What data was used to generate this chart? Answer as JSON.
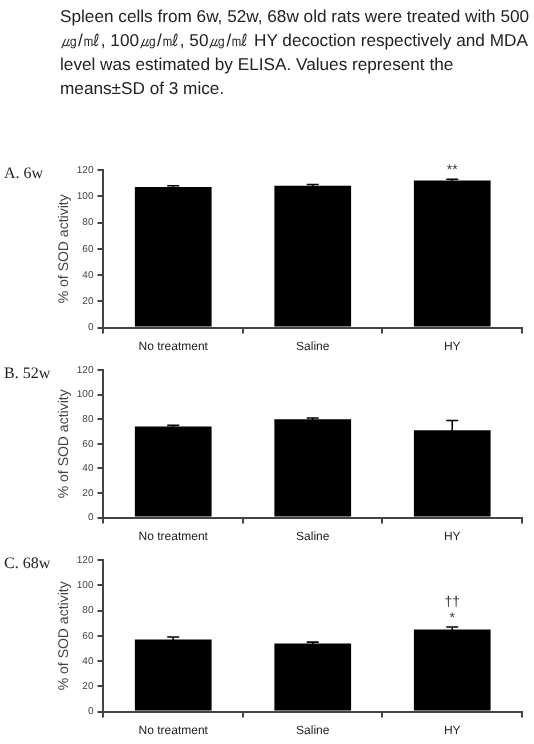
{
  "chart_data": [
    {
      "type": "bar",
      "title": "A. 6w",
      "ylabel": "% of SOD activity",
      "categories": [
        "No treatment",
        "Saline",
        "HY"
      ],
      "values": [
        107,
        108,
        112
      ],
      "errors": [
        1,
        1,
        1
      ],
      "color": "#000000",
      "ylim": [
        0,
        120
      ],
      "yticks": [
        0,
        20,
        40,
        60,
        80,
        100,
        120
      ],
      "grid": false,
      "legend": false,
      "annotations": [
        "Spleen cells from 6w, 52w, 68w old rats were treated with 500㎍/㎖, 100㎍/㎖, 50㎍/㎖ HY decoction respectively and MDA level was estimated by ELISA. Values represent the means±SD of 3 mice.",
        {
          "text": "**",
          "x": "HY",
          "y": 113
        }
      ]
    },
    {
      "type": "bar",
      "title": "B. 52w",
      "ylabel": "% of SOD activity",
      "categories": [
        "No treatment",
        "Saline",
        "HY"
      ],
      "values": [
        74,
        80,
        71
      ],
      "errors": [
        1,
        1,
        8
      ],
      "color": "#000000",
      "ylim": [
        0,
        120
      ],
      "yticks": [
        0,
        20,
        40,
        60,
        80,
        100,
        120
      ],
      "grid": false,
      "legend": false
    },
    {
      "type": "bar",
      "title": "C. 68w",
      "ylabel": "% of SOD activity",
      "categories": [
        "No treatment",
        "Saline",
        "HY"
      ],
      "values": [
        57,
        54,
        65
      ],
      "errors": [
        2,
        1,
        2
      ],
      "color": "#000000",
      "ylim": [
        0,
        120
      ],
      "yticks": [
        0,
        20,
        40,
        60,
        80,
        100,
        120
      ],
      "grid": false,
      "legend": false,
      "annotations": [
        {
          "text": "*",
          "x": "HY",
          "y": 67
        },
        {
          "text": "††",
          "x": "HY",
          "y": 67
        }
      ]
    }
  ]
}
